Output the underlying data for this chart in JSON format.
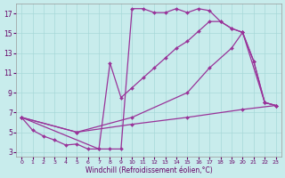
{
  "xlabel": "Windchill (Refroidissement éolien,°C)",
  "bg_color": "#c8ecec",
  "line_color": "#993399",
  "grid_color": "#a8d8d8",
  "xlim": [
    -0.5,
    23.5
  ],
  "ylim": [
    2.5,
    18.0
  ],
  "xticks": [
    0,
    1,
    2,
    3,
    4,
    5,
    6,
    7,
    8,
    9,
    10,
    11,
    12,
    13,
    14,
    15,
    16,
    17,
    18,
    19,
    20,
    21,
    22,
    23
  ],
  "yticks": [
    3,
    5,
    7,
    9,
    11,
    13,
    15,
    17
  ],
  "curve1_x": [
    0,
    1,
    2,
    3,
    4,
    5,
    6,
    7,
    8,
    9,
    10,
    11,
    12,
    13,
    14,
    15,
    16,
    17,
    18,
    19,
    20,
    21,
    22,
    23
  ],
  "curve1_y": [
    6.5,
    5.2,
    4.6,
    4.2,
    3.7,
    3.8,
    3.3,
    3.3,
    3.3,
    3.3,
    17.5,
    17.5,
    17.1,
    17.1,
    17.5,
    17.1,
    17.5,
    17.3,
    16.2,
    15.5,
    15.1,
    12.2,
    8.0,
    7.7
  ],
  "curve2_x": [
    0,
    7,
    8,
    9,
    10,
    11,
    12,
    13,
    14,
    15,
    16,
    17,
    18,
    19,
    20,
    21,
    22,
    23
  ],
  "curve2_y": [
    6.5,
    3.3,
    12.0,
    8.5,
    9.5,
    10.5,
    11.5,
    12.5,
    13.5,
    14.2,
    15.2,
    16.2,
    16.2,
    15.5,
    15.1,
    12.2,
    8.0,
    7.7
  ],
  "curve3_x": [
    0,
    5,
    10,
    15,
    17,
    19,
    20,
    22,
    23
  ],
  "curve3_y": [
    6.5,
    5.0,
    6.5,
    9.0,
    11.5,
    13.5,
    15.1,
    8.0,
    7.7
  ],
  "curve4_x": [
    0,
    5,
    10,
    15,
    20,
    23
  ],
  "curve4_y": [
    6.5,
    5.0,
    5.8,
    6.5,
    7.3,
    7.7
  ],
  "markersize": 2.0,
  "linewidth": 0.9
}
